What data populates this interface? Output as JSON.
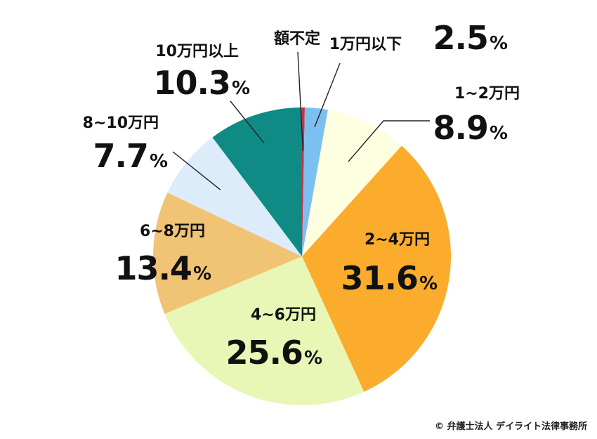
{
  "chart_data": {
    "type": "pie",
    "slices": [
      {
        "label": "額不定",
        "value": 0.3,
        "display": "",
        "color": "#c0344a"
      },
      {
        "label": "1万円以下",
        "value": 2.5,
        "display": "2.5",
        "color": "#7cc0f0"
      },
      {
        "label": "1~2万円",
        "value": 8.9,
        "display": "8.9",
        "color": "#fefee0"
      },
      {
        "label": "2~4万円",
        "value": 31.6,
        "display": "31.6",
        "color": "#fbac2c"
      },
      {
        "label": "4~6万円",
        "value": 25.6,
        "display": "25.6",
        "color": "#e8f6b6"
      },
      {
        "label": "6~8万円",
        "value": 13.4,
        "display": "13.4",
        "color": "#f0c474"
      },
      {
        "label": "8~10万円",
        "value": 7.7,
        "display": "7.7",
        "color": "#dcecfb"
      },
      {
        "label": "10万円以上",
        "value": 10.3,
        "display": "10.3",
        "color": "#0f8a84"
      }
    ],
    "percent_sign": "%"
  },
  "credit": "© 弁護士法人 デイライト法律事務所"
}
